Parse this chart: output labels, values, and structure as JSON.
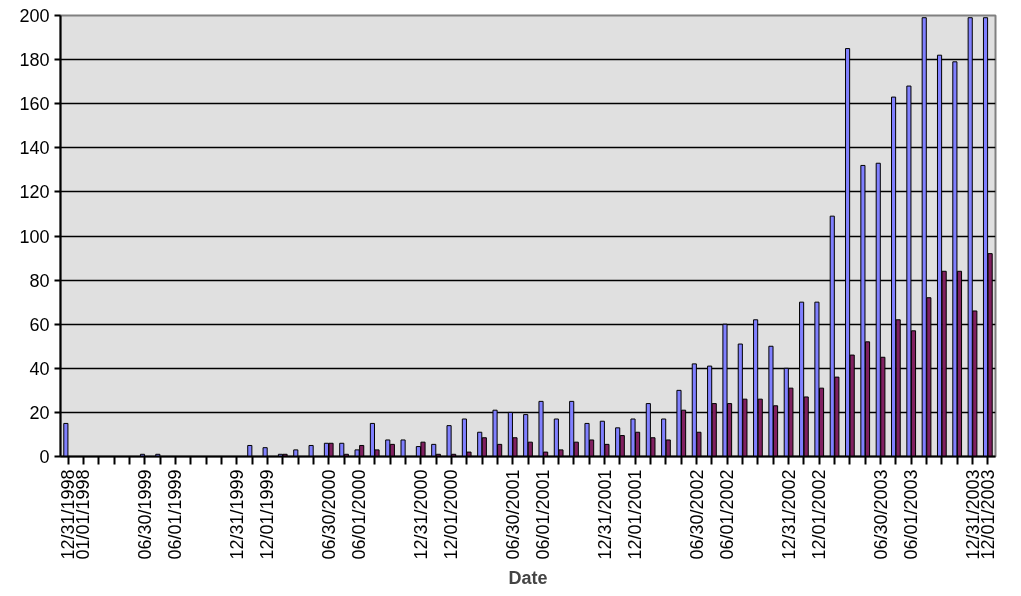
{
  "chart_data": {
    "type": "bar",
    "xlabel": "Date",
    "categories": [
      "12/31/1998",
      "01/01/1998",
      null,
      null,
      null,
      "06/30/1999",
      null,
      "06/01/1999",
      null,
      null,
      null,
      "12/31/1999",
      null,
      "12/01/1999",
      null,
      null,
      null,
      "06/30/2000",
      null,
      "06/01/2000",
      null,
      null,
      null,
      "12/31/2000",
      null,
      "12/01/2000",
      null,
      null,
      null,
      "06/30/2001",
      null,
      "06/01/2001",
      null,
      null,
      null,
      "12/31/2001",
      null,
      "12/01/2001",
      null,
      null,
      null,
      "06/30/2002",
      null,
      "06/01/2002",
      null,
      null,
      null,
      "12/31/2002",
      null,
      "12/01/2002",
      null,
      null,
      null,
      "06/30/2003",
      null,
      "06/01/2003",
      null,
      null,
      null,
      "12/31/2003",
      "12/01/2003"
    ],
    "series": [
      {
        "color": "#8080ff",
        "values": [
          15,
          null,
          null,
          null,
          null,
          1,
          1,
          null,
          null,
          null,
          null,
          null,
          5,
          4,
          1,
          3,
          5,
          6,
          6,
          3,
          15,
          7.5,
          7.5,
          4.5,
          5.5,
          14,
          17,
          11,
          21,
          20,
          19,
          25,
          17,
          25,
          15,
          16,
          13,
          17,
          24,
          17,
          30,
          42,
          41,
          60,
          51,
          62,
          50,
          40,
          70,
          70,
          109,
          185,
          132,
          133,
          163,
          168,
          199,
          182,
          179,
          199,
          199
        ]
      },
      {
        "color": "#802060",
        "values": [
          null,
          null,
          null,
          null,
          null,
          null,
          null,
          null,
          null,
          null,
          null,
          null,
          null,
          null,
          1,
          null,
          null,
          6,
          1,
          5,
          3,
          5.5,
          null,
          6.5,
          1,
          1,
          2,
          8.5,
          5.5,
          8.5,
          6.5,
          2,
          3,
          6.5,
          7.5,
          5.5,
          9.5,
          11,
          8.5,
          7.5,
          21,
          11,
          24,
          24,
          26,
          26,
          23,
          31,
          27,
          31,
          36,
          46,
          52,
          45,
          62,
          57,
          72,
          84,
          84,
          66,
          92
        ]
      }
    ],
    "ylim": [
      0,
      200
    ],
    "yticks": [
      0,
      20,
      40,
      60,
      80,
      100,
      120,
      140,
      160,
      180,
      200
    ],
    "grid": "y"
  }
}
